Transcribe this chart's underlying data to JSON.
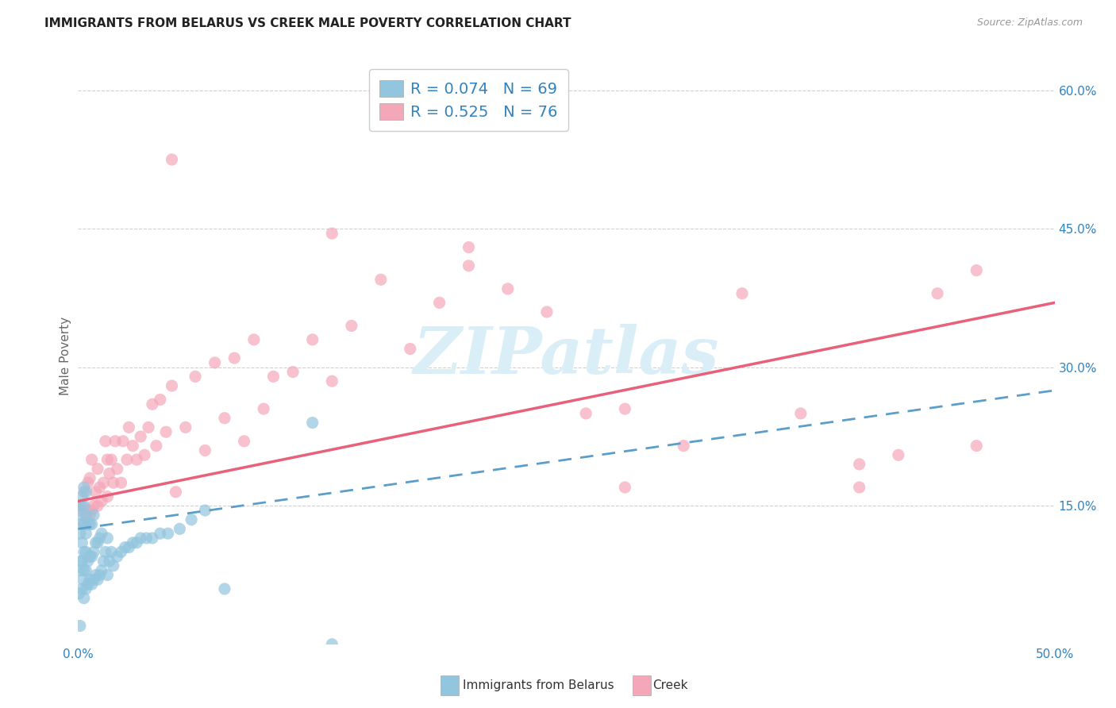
{
  "title": "IMMIGRANTS FROM BELARUS VS CREEK MALE POVERTY CORRELATION CHART",
  "source": "Source: ZipAtlas.com",
  "ylabel": "Male Poverty",
  "x_min": 0.0,
  "x_max": 0.5,
  "y_min": 0.0,
  "y_max": 0.625,
  "legend_label1": "Immigrants from Belarus",
  "legend_label2": "Creek",
  "legend_R1": "R = 0.074",
  "legend_N1": "N = 69",
  "legend_R2": "R = 0.525",
  "legend_N2": "N = 76",
  "color_blue": "#92c5de",
  "color_pink": "#f4a7b9",
  "color_blue_line": "#5b9ec9",
  "color_pink_line": "#e8607a",
  "color_title": "#222222",
  "color_source": "#999999",
  "color_legend_text": "#3182bd",
  "color_axis_labels": "#3182bd",
  "watermark": "ZIPatlas",
  "watermark_color": "#daeef8",
  "background": "#ffffff",
  "grid_color": "#d0d0d0",
  "belarus_x": [
    0.0005,
    0.001,
    0.001,
    0.001,
    0.001,
    0.0015,
    0.0015,
    0.002,
    0.002,
    0.002,
    0.002,
    0.002,
    0.0025,
    0.003,
    0.003,
    0.003,
    0.003,
    0.003,
    0.003,
    0.004,
    0.004,
    0.004,
    0.004,
    0.004,
    0.004,
    0.005,
    0.005,
    0.005,
    0.006,
    0.006,
    0.006,
    0.007,
    0.007,
    0.007,
    0.008,
    0.008,
    0.008,
    0.009,
    0.009,
    0.01,
    0.01,
    0.011,
    0.011,
    0.012,
    0.012,
    0.013,
    0.014,
    0.015,
    0.015,
    0.016,
    0.017,
    0.018,
    0.02,
    0.022,
    0.024,
    0.026,
    0.028,
    0.03,
    0.032,
    0.035,
    0.038,
    0.042,
    0.046,
    0.052,
    0.058,
    0.065,
    0.075,
    0.12,
    0.13
  ],
  "belarus_y": [
    0.055,
    0.02,
    0.08,
    0.12,
    0.15,
    0.09,
    0.13,
    0.06,
    0.09,
    0.11,
    0.14,
    0.16,
    0.07,
    0.05,
    0.08,
    0.1,
    0.13,
    0.15,
    0.17,
    0.06,
    0.08,
    0.1,
    0.12,
    0.14,
    0.165,
    0.065,
    0.09,
    0.13,
    0.07,
    0.095,
    0.13,
    0.065,
    0.095,
    0.13,
    0.07,
    0.1,
    0.14,
    0.075,
    0.11,
    0.07,
    0.11,
    0.075,
    0.115,
    0.08,
    0.12,
    0.09,
    0.1,
    0.075,
    0.115,
    0.09,
    0.1,
    0.085,
    0.095,
    0.1,
    0.105,
    0.105,
    0.11,
    0.11,
    0.115,
    0.115,
    0.115,
    0.12,
    0.12,
    0.125,
    0.135,
    0.145,
    0.06,
    0.24,
    0.0
  ],
  "creek_x": [
    0.001,
    0.002,
    0.003,
    0.003,
    0.004,
    0.005,
    0.005,
    0.006,
    0.006,
    0.007,
    0.007,
    0.008,
    0.009,
    0.01,
    0.01,
    0.011,
    0.012,
    0.013,
    0.014,
    0.015,
    0.015,
    0.016,
    0.017,
    0.018,
    0.019,
    0.02,
    0.022,
    0.023,
    0.025,
    0.026,
    0.028,
    0.03,
    0.032,
    0.034,
    0.036,
    0.038,
    0.04,
    0.042,
    0.045,
    0.048,
    0.05,
    0.055,
    0.06,
    0.065,
    0.07,
    0.075,
    0.08,
    0.085,
    0.09,
    0.095,
    0.1,
    0.11,
    0.12,
    0.13,
    0.14,
    0.155,
    0.17,
    0.185,
    0.2,
    0.22,
    0.24,
    0.26,
    0.28,
    0.31,
    0.34,
    0.37,
    0.4,
    0.42,
    0.44,
    0.46,
    0.048,
    0.13,
    0.2,
    0.28,
    0.4,
    0.46
  ],
  "creek_y": [
    0.145,
    0.15,
    0.13,
    0.165,
    0.14,
    0.145,
    0.175,
    0.14,
    0.18,
    0.145,
    0.2,
    0.15,
    0.165,
    0.15,
    0.19,
    0.17,
    0.155,
    0.175,
    0.22,
    0.16,
    0.2,
    0.185,
    0.2,
    0.175,
    0.22,
    0.19,
    0.175,
    0.22,
    0.2,
    0.235,
    0.215,
    0.2,
    0.225,
    0.205,
    0.235,
    0.26,
    0.215,
    0.265,
    0.23,
    0.28,
    0.165,
    0.235,
    0.29,
    0.21,
    0.305,
    0.245,
    0.31,
    0.22,
    0.33,
    0.255,
    0.29,
    0.295,
    0.33,
    0.285,
    0.345,
    0.395,
    0.32,
    0.37,
    0.41,
    0.385,
    0.36,
    0.25,
    0.17,
    0.215,
    0.38,
    0.25,
    0.17,
    0.205,
    0.38,
    0.405,
    0.525,
    0.445,
    0.43,
    0.255,
    0.195,
    0.215
  ]
}
